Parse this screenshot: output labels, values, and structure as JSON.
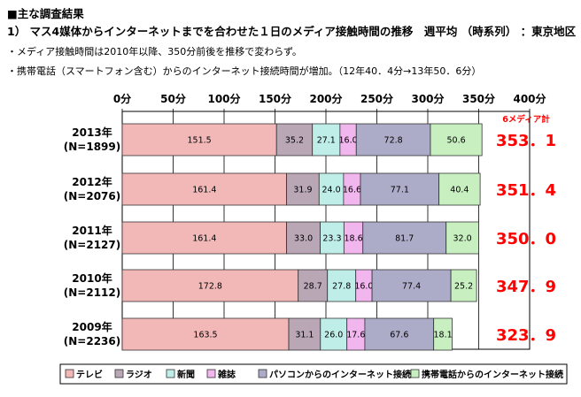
{
  "heading": "■主な調査結果",
  "subtitle": "1） マス4媒体からインターネットまでを合わせた１日のメディア接触時間の推移　週平均 （時系列） ：東京地区",
  "notes": [
    "・メディア接触時間は2010年以降、350分前後を推移で変わらず。",
    "・携帯電話（スマートフォン含む）からのインターネット接続時間が増加。（12年40．4分→13年50．6分）"
  ],
  "chart_data": {
    "type": "bar",
    "orientation": "horizontal",
    "stacked": true,
    "xlim": [
      0,
      400
    ],
    "x_tick_labels": [
      "0分",
      "50分",
      "100分",
      "150分",
      "200分",
      "250分",
      "300分",
      "350分",
      "400分"
    ],
    "grid": true,
    "legend_position": "bottom",
    "categories": [
      [
        "2013年",
        "(N=1899)"
      ],
      [
        "2012年",
        "(N=2076)"
      ],
      [
        "2011年",
        "(N=2127)"
      ],
      [
        "2010年",
        "(N=2112)"
      ],
      [
        "2009年",
        "(N=2236)"
      ]
    ],
    "series": [
      {
        "name": "テレビ",
        "color": "#f2b8b8",
        "values": [
          151.5,
          161.4,
          161.4,
          172.8,
          163.5
        ],
        "labels": [
          "151.5",
          "161.4",
          "161.4",
          "172.8",
          "163.5"
        ]
      },
      {
        "name": "ラジオ",
        "color": "#b9a7b6",
        "values": [
          35.2,
          31.9,
          33.0,
          28.7,
          31.1
        ],
        "labels": [
          "35.2",
          "31.9",
          "33.0",
          "28.7",
          "31.1"
        ]
      },
      {
        "name": "新聞",
        "color": "#bfeee9",
        "values": [
          27.1,
          24.0,
          23.3,
          27.8,
          26.0
        ],
        "labels": [
          "27.1",
          "24.0",
          "23.3",
          "27.8",
          "26.0"
        ]
      },
      {
        "name": "雑誌",
        "color": "#f2b6ee",
        "values": [
          16.0,
          16.6,
          18.6,
          16.0,
          17.6
        ],
        "labels": [
          "16.0",
          "16.6",
          "18.6",
          "16.0",
          "17.6"
        ]
      },
      {
        "name": "パソコンからのインターネット接続",
        "color": "#acacc8",
        "values": [
          72.8,
          77.1,
          81.7,
          77.4,
          67.6
        ],
        "labels": [
          "72.8",
          "77.1",
          "81.7",
          "77.4",
          "67.6"
        ]
      },
      {
        "name": "携帯電話からのインターネット接続",
        "color": "#c7efc0",
        "values": [
          50.6,
          40.4,
          32.0,
          25.2,
          18.1
        ],
        "labels": [
          "50.6",
          "40.4",
          "32.0",
          "25.2",
          "18.1"
        ]
      }
    ],
    "totals_header": "6メディア計",
    "totals": [
      "353．1",
      "351．4",
      "350．0",
      "347．9",
      "323．9"
    ],
    "totals_color": "#ff0000"
  }
}
